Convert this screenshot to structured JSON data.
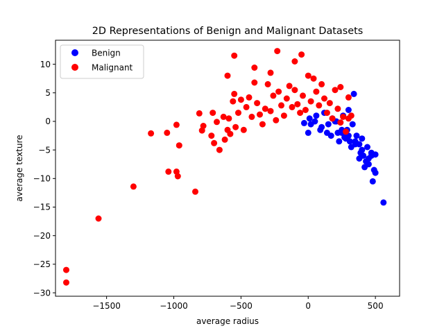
{
  "chart_data": {
    "type": "scatter",
    "title": "2D Representations of Benign and Malignant Datasets",
    "xlabel": "average radius",
    "ylabel": "average texture",
    "xlim": [
      -1880,
      680
    ],
    "ylim": [
      -30.6,
      14.2
    ],
    "xticks": [
      -1500,
      -1000,
      -500,
      0,
      500
    ],
    "yticks": [
      -30,
      -25,
      -20,
      -15,
      -10,
      -5,
      0,
      5,
      10
    ],
    "grid": false,
    "legend_position": "top-left",
    "series": [
      {
        "name": "Benign",
        "color": "#0000ff",
        "x": [
          100,
          150,
          200,
          250,
          300,
          350,
          400,
          450,
          500,
          560,
          480,
          420,
          380,
          320,
          280,
          220,
          180,
          120,
          60,
          20,
          0,
          -30,
          340,
          300,
          260,
          400,
          440,
          470,
          360,
          230,
          170,
          140,
          90,
          50,
          10,
          330,
          290,
          250,
          210,
          380,
          410,
          450,
          490,
          500,
          470,
          430,
          390,
          350,
          310,
          270
        ],
        "y": [
          -1.0,
          -0.5,
          0.0,
          -1.5,
          -2.5,
          -3.5,
          -5.0,
          -6.5,
          -9.0,
          -14.2,
          -10.5,
          -8.0,
          -6.5,
          -4.5,
          -3.0,
          -2.0,
          0.5,
          1.5,
          1.0,
          -0.5,
          -2.0,
          -0.3,
          4.8,
          2.0,
          1.0,
          -3.0,
          -4.5,
          -5.5,
          -2.5,
          -3.5,
          -2.5,
          -2.0,
          -1.5,
          0.0,
          0.5,
          -0.5,
          -1.5,
          -2.0,
          0.0,
          -4.0,
          -6.0,
          -7.5,
          -8.5,
          -5.8,
          -6.0,
          -7.0,
          -5.5,
          -4.0,
          -3.5,
          -2.8
        ]
      },
      {
        "name": "Malignant",
        "color": "#ff0000",
        "x": [
          -1800,
          -1800,
          -1560,
          -1300,
          -1170,
          -1050,
          -1040,
          -980,
          -980,
          -970,
          -960,
          -840,
          -810,
          -790,
          -780,
          -720,
          -710,
          -700,
          -680,
          -660,
          -630,
          -620,
          -600,
          -590,
          -580,
          -560,
          -550,
          -540,
          -520,
          -500,
          -480,
          -460,
          -440,
          -420,
          -400,
          -380,
          -360,
          -340,
          -320,
          -300,
          -280,
          -260,
          -240,
          -220,
          -200,
          -180,
          -160,
          -140,
          -120,
          -100,
          -80,
          -60,
          -40,
          -20,
          0,
          20,
          40,
          60,
          80,
          100,
          120,
          140,
          160,
          180,
          200,
          220,
          240,
          260,
          280,
          300,
          320,
          -550,
          -600,
          -400,
          -230,
          -50,
          -280,
          -100,
          300,
          240
        ],
        "y": [
          -26.0,
          -28.2,
          -17.0,
          -11.4,
          -2.1,
          -2.0,
          -8.8,
          -0.6,
          -8.8,
          -9.6,
          -4.2,
          -12.3,
          1.4,
          -1.6,
          -0.8,
          -2.5,
          1.5,
          -3.8,
          -0.1,
          -5.0,
          0.8,
          -3.2,
          -1.5,
          0.5,
          -2.2,
          3.5,
          4.8,
          -1.0,
          1.5,
          3.8,
          -1.5,
          2.5,
          4.2,
          0.8,
          6.8,
          3.2,
          1.2,
          -0.5,
          2.2,
          6.5,
          1.8,
          4.5,
          0.2,
          5.2,
          2.8,
          1.0,
          4.0,
          6.2,
          2.5,
          5.5,
          3.0,
          1.5,
          4.5,
          2.0,
          8.0,
          3.5,
          7.5,
          5.2,
          2.8,
          6.5,
          4.0,
          1.5,
          3.2,
          0.5,
          5.5,
          2.2,
          6.0,
          0.8,
          -1.8,
          4.2,
          1.0,
          11.5,
          8.0,
          9.4,
          12.3,
          11.7,
          8.5,
          10.5,
          0.5,
          -0.2
        ]
      }
    ]
  }
}
